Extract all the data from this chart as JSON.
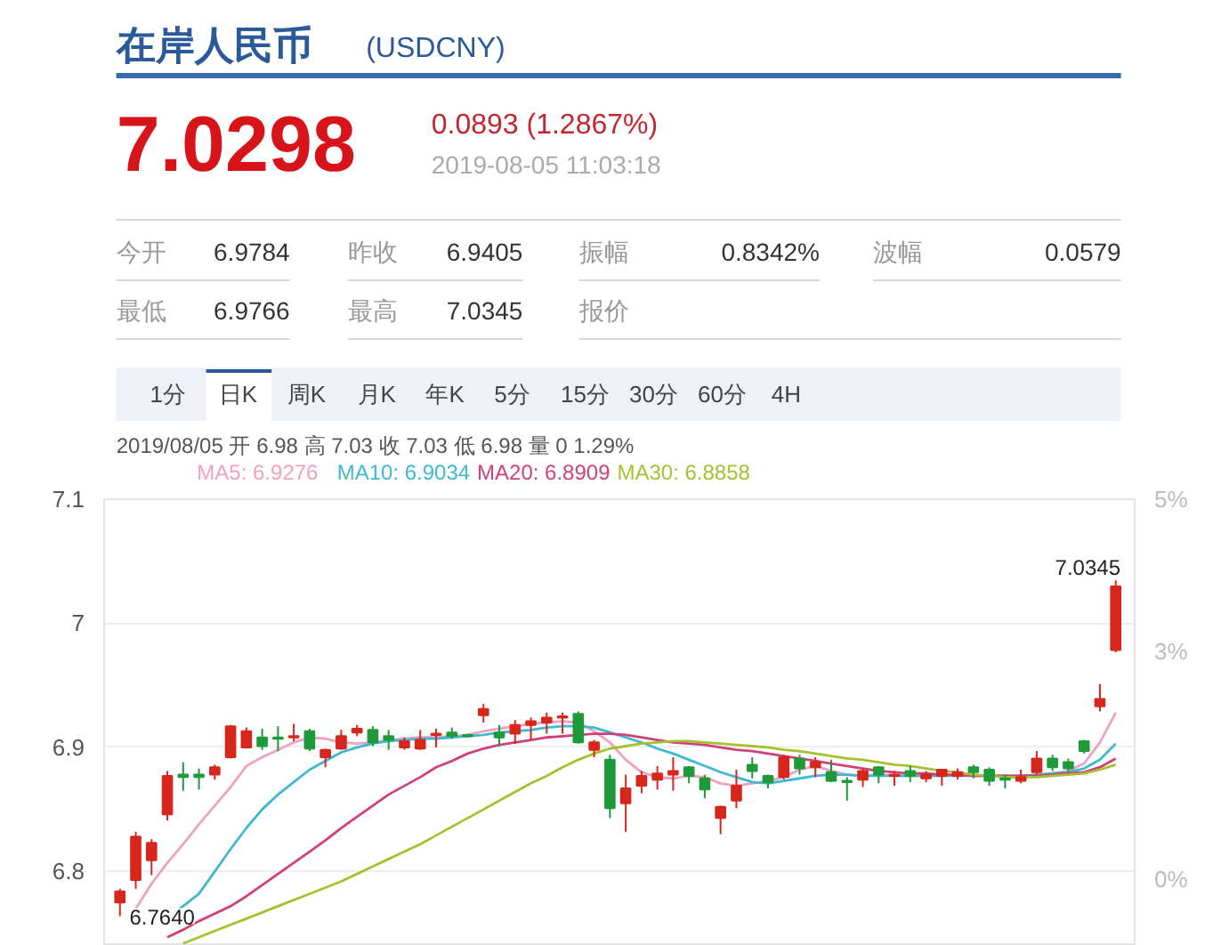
{
  "chart_data": {
    "type": "candlestick",
    "title": "在岸人民币",
    "subtitle": "(USDCNY)",
    "annotations": [
      "7.0298",
      "0.0893 (1.2867%)",
      "2019-08-05 11:03:18",
      "今开",
      "6.9784",
      "昨收",
      "6.9405",
      "振幅",
      "0.8342%",
      "波幅",
      "0.0579",
      "最低",
      "6.9766",
      "最高",
      "7.0345",
      "报价",
      "1分",
      "日K",
      "周K",
      "月K",
      "年K",
      "5分",
      "15分",
      "30分",
      "60分",
      "4H",
      "2019/08/05 开 6.98 高 7.03 收 7.03 低 6.98 量 0 1.29%",
      "6.7640",
      "7.0345"
    ],
    "categories": [
      null,
      null,
      null,
      null,
      null,
      null,
      null,
      null,
      null,
      null,
      null,
      null,
      null,
      null,
      null,
      null,
      null,
      null,
      null,
      null,
      null,
      null,
      null,
      null,
      null,
      null,
      null,
      null,
      null,
      null,
      null,
      null,
      null,
      null,
      null,
      null,
      null,
      null,
      null,
      null,
      null,
      null,
      null,
      null,
      null,
      null,
      null,
      null,
      null,
      null,
      null,
      null,
      null,
      null,
      null,
      null,
      null,
      null,
      null,
      null,
      null,
      null,
      null,
      null
    ],
    "ohlc": [
      [
        6.775,
        6.786,
        6.764,
        6.784
      ],
      [
        6.793,
        6.832,
        6.786,
        6.828
      ],
      [
        6.809,
        6.826,
        6.797,
        6.823
      ],
      [
        6.846,
        6.881,
        6.841,
        6.877
      ],
      [
        6.878,
        6.888,
        6.865,
        6.876
      ],
      [
        6.878,
        6.883,
        6.866,
        6.876
      ],
      [
        6.878,
        6.886,
        6.874,
        6.884
      ],
      [
        6.892,
        6.918,
        6.891,
        6.917
      ],
      [
        6.9,
        6.916,
        6.899,
        6.913
      ],
      [
        6.908,
        6.915,
        6.898,
        6.901
      ],
      [
        6.908,
        6.917,
        6.897,
        6.907
      ],
      [
        6.908,
        6.919,
        6.905,
        6.909
      ],
      [
        6.913,
        6.915,
        6.897,
        6.899
      ],
      [
        6.892,
        6.899,
        6.884,
        6.898
      ],
      [
        6.899,
        6.914,
        6.898,
        6.909
      ],
      [
        6.912,
        6.918,
        6.909,
        6.915
      ],
      [
        6.914,
        6.917,
        6.901,
        6.904
      ],
      [
        6.909,
        6.914,
        6.898,
        6.906
      ],
      [
        6.9,
        6.908,
        6.898,
        6.905
      ],
      [
        6.899,
        6.914,
        6.898,
        6.906
      ],
      [
        6.91,
        6.915,
        6.9,
        6.911
      ],
      [
        6.912,
        6.916,
        6.907,
        6.909
      ],
      [
        6.91,
        6.911,
        6.908,
        6.909
      ],
      [
        6.926,
        6.935,
        6.92,
        6.931
      ],
      [
        6.912,
        6.918,
        6.901,
        6.908
      ],
      [
        6.911,
        6.922,
        6.903,
        6.918
      ],
      [
        6.918,
        6.924,
        6.906,
        6.921
      ],
      [
        6.92,
        6.928,
        6.911,
        6.924
      ],
      [
        6.924,
        6.928,
        6.911,
        6.925
      ],
      [
        6.927,
        6.929,
        6.903,
        6.904
      ],
      [
        6.898,
        6.906,
        6.892,
        6.904
      ],
      [
        6.89,
        6.894,
        6.843,
        6.851
      ],
      [
        6.855,
        6.878,
        6.832,
        6.867
      ],
      [
        6.869,
        6.881,
        6.863,
        6.877
      ],
      [
        6.874,
        6.885,
        6.866,
        6.879
      ],
      [
        6.878,
        6.892,
        6.865,
        6.881
      ],
      [
        6.884,
        6.885,
        6.871,
        6.877
      ],
      [
        6.875,
        6.878,
        6.859,
        6.866
      ],
      [
        6.843,
        6.853,
        6.83,
        6.852
      ],
      [
        6.857,
        6.882,
        6.851,
        6.869
      ],
      [
        6.886,
        6.892,
        6.875,
        6.881
      ],
      [
        6.877,
        6.878,
        6.867,
        6.872
      ],
      [
        6.876,
        6.894,
        6.874,
        6.892
      ],
      [
        6.891,
        6.894,
        6.878,
        6.883
      ],
      [
        6.884,
        6.892,
        6.876,
        6.888
      ],
      [
        6.88,
        6.89,
        6.872,
        6.873
      ],
      [
        6.873,
        6.876,
        6.857,
        6.872
      ],
      [
        6.874,
        6.883,
        6.868,
        6.881
      ],
      [
        6.884,
        6.885,
        6.871,
        6.878
      ],
      [
        6.877,
        6.881,
        6.869,
        6.878
      ],
      [
        6.881,
        6.885,
        6.872,
        6.877
      ],
      [
        6.875,
        6.881,
        6.872,
        6.878
      ],
      [
        6.877,
        6.882,
        6.869,
        6.882
      ],
      [
        6.877,
        6.883,
        6.874,
        6.88
      ],
      [
        6.884,
        6.886,
        6.875,
        6.88
      ],
      [
        6.882,
        6.884,
        6.869,
        6.873
      ],
      [
        6.875,
        6.878,
        6.867,
        6.874
      ],
      [
        6.873,
        6.882,
        6.871,
        6.876
      ],
      [
        6.88,
        6.897,
        6.878,
        6.891
      ],
      [
        6.891,
        6.894,
        6.881,
        6.884
      ],
      [
        6.888,
        6.891,
        6.88,
        6.883
      ],
      [
        6.905,
        6.906,
        6.895,
        6.897
      ],
      [
        6.933,
        6.951,
        6.929,
        6.939
      ],
      [
        6.9784,
        7.0345,
        6.9766,
        7.0298
      ]
    ],
    "series": [
      {
        "name": "MA5: 6.9276",
        "type": "line",
        "color": "#f0a0c0",
        "values": [
          null,
          6.77,
          6.79,
          6.807,
          6.822,
          6.838,
          6.853,
          6.868,
          6.885,
          6.892,
          6.898,
          6.904,
          6.908,
          6.907,
          6.904,
          6.903,
          6.904,
          6.906,
          6.907,
          6.908,
          6.908,
          6.909,
          6.91,
          6.913,
          6.915,
          6.917,
          6.919,
          6.92,
          6.921,
          6.92,
          6.913,
          6.904,
          6.89,
          6.88,
          6.876,
          6.875,
          6.877,
          6.876,
          6.871,
          6.869,
          6.871,
          6.873,
          6.876,
          6.882,
          6.885,
          6.881,
          6.878,
          6.877,
          6.878,
          6.877,
          6.877,
          6.877,
          6.877,
          6.878,
          6.878,
          6.877,
          6.876,
          6.876,
          6.878,
          6.879,
          6.881,
          6.887,
          6.904,
          6.928
        ]
      },
      {
        "name": "MA10: 6.9034",
        "type": "line",
        "color": "#40b8d0",
        "values": [
          null,
          null,
          null,
          6.763,
          6.772,
          6.782,
          6.8,
          6.818,
          6.835,
          6.85,
          6.862,
          6.872,
          6.882,
          6.889,
          6.896,
          6.9,
          6.903,
          6.905,
          6.906,
          6.907,
          6.907,
          6.908,
          6.909,
          6.91,
          6.912,
          6.913,
          6.914,
          6.916,
          6.917,
          6.917,
          6.916,
          6.912,
          6.908,
          6.904,
          6.899,
          6.895,
          6.89,
          6.885,
          6.88,
          6.876,
          6.872,
          6.871,
          6.873,
          6.875,
          6.877,
          6.878,
          6.878,
          6.877,
          6.877,
          6.877,
          6.877,
          6.877,
          6.877,
          6.877,
          6.877,
          6.877,
          6.877,
          6.877,
          6.878,
          6.879,
          6.88,
          6.883,
          6.89,
          6.903
        ]
      },
      {
        "name": "MA20: 6.8909",
        "type": "line",
        "color": "#d0407a",
        "values": [
          null,
          null,
          null,
          6.747,
          6.753,
          6.76,
          6.766,
          6.772,
          6.78,
          6.789,
          6.798,
          6.807,
          6.816,
          6.825,
          6.835,
          6.844,
          6.853,
          6.862,
          6.869,
          6.876,
          6.884,
          6.889,
          6.895,
          6.899,
          6.902,
          6.904,
          6.906,
          6.908,
          6.909,
          6.91,
          6.911,
          6.911,
          6.91,
          6.908,
          6.906,
          6.904,
          6.903,
          6.902,
          6.9,
          6.898,
          6.897,
          6.895,
          6.893,
          6.891,
          6.889,
          6.887,
          6.885,
          6.883,
          6.881,
          6.88,
          6.879,
          6.879,
          6.878,
          6.878,
          6.877,
          6.877,
          6.877,
          6.877,
          6.877,
          6.878,
          6.879,
          6.88,
          6.884,
          6.891
        ]
      },
      {
        "name": "MA30: 6.8858",
        "type": "line",
        "color": "#a8c030",
        "values": [
          null,
          null,
          null,
          null,
          6.742,
          6.747,
          6.752,
          6.757,
          6.762,
          6.767,
          6.772,
          6.777,
          6.782,
          6.787,
          6.792,
          6.798,
          6.804,
          6.81,
          6.816,
          6.822,
          6.829,
          6.836,
          6.843,
          6.85,
          6.857,
          6.864,
          6.871,
          6.877,
          6.884,
          6.89,
          6.895,
          6.899,
          6.901,
          6.903,
          6.904,
          6.905,
          6.905,
          6.904,
          6.903,
          6.902,
          6.901,
          6.9,
          6.898,
          6.897,
          6.895,
          6.893,
          6.891,
          6.89,
          6.888,
          6.886,
          6.885,
          6.883,
          6.881,
          6.88,
          6.878,
          6.877,
          6.876,
          6.876,
          6.876,
          6.877,
          6.878,
          6.879,
          6.882,
          6.886
        ]
      }
    ],
    "ylim": [
      6.74,
      7.1
    ],
    "yticks": [
      7.1,
      7,
      6.9,
      6.8
    ],
    "y2lim": [
      -0.88,
      5
    ],
    "y2ticks": [
      {
        "value": 0,
        "label": "0%"
      },
      {
        "value": 3,
        "label": "3%"
      },
      {
        "value": 5,
        "label": "5%"
      }
    ],
    "grid": "y",
    "legend": "top"
  }
}
